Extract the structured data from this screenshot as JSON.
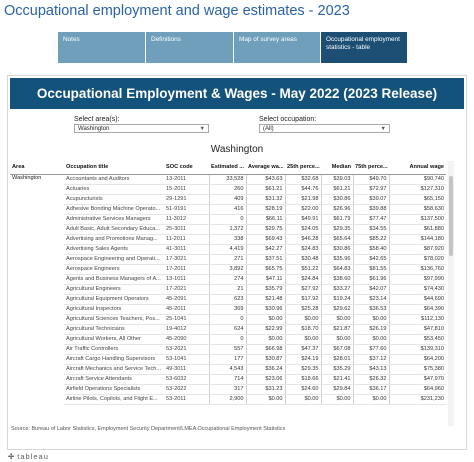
{
  "page": {
    "title": "Occupational employment and wage estimates - 2023"
  },
  "tabs": [
    {
      "label": "Notes"
    },
    {
      "label": "Definitions"
    },
    {
      "label": "Map of survey areas"
    },
    {
      "label": "Occupational employment statistics - table"
    }
  ],
  "viz": {
    "banner": "Occupational Employment & Wages - May 2022 (2023 Release)",
    "area_filter": {
      "label": "Select area(s):",
      "value": "Washington"
    },
    "occupation_filter": {
      "label": "Select occupation:",
      "value": "(All)"
    },
    "heading": "Washington",
    "columns": {
      "area": "Area",
      "occupation": "Occupation title",
      "soc": "SOC code",
      "estimated": "Estimated ...",
      "avg": "Average wa...",
      "p25": "25th perce...",
      "median": "Median",
      "p75": "75th perce...",
      "annual": "Annual wage"
    },
    "area_value": "Washington",
    "rows": [
      {
        "occupation": "Accountants and Auditors",
        "soc": "13-2011",
        "estimated": "33,528",
        "avg": "$43.63",
        "p25": "$32.68",
        "median": "$39.03",
        "p75": "$49.70",
        "annual": "$90,740"
      },
      {
        "occupation": "Actuaries",
        "soc": "15-2011",
        "estimated": "260",
        "avg": "$61.21",
        "p25": "$44.76",
        "median": "$61.21",
        "p75": "$72.97",
        "annual": "$127,310"
      },
      {
        "occupation": "Acupuncturists",
        "soc": "29-1291",
        "estimated": "409",
        "avg": "$31.32",
        "p25": "$21.98",
        "median": "$30.86",
        "p75": "$39.07",
        "annual": "$65,150"
      },
      {
        "occupation": "Adhesive Bonding Machine Operato...",
        "soc": "51-9191",
        "estimated": "416",
        "avg": "$28.19",
        "p25": "$22.00",
        "median": "$26.96",
        "p75": "$39.88",
        "annual": "$58,630"
      },
      {
        "occupation": "Administrative Services Managers",
        "soc": "11-3012",
        "estimated": "0",
        "avg": "$66.11",
        "p25": "$49.91",
        "median": "$61.79",
        "p75": "$77.47",
        "annual": "$137,500"
      },
      {
        "occupation": "Adult Basic, Adult Secondary Educa...",
        "soc": "25-3011",
        "estimated": "1,372",
        "avg": "$29.75",
        "p25": "$24.05",
        "median": "$29.35",
        "p75": "$34.55",
        "annual": "$61,880"
      },
      {
        "occupation": "Advertising and Promotions Manag...",
        "soc": "11-2011",
        "estimated": "338",
        "avg": "$69.43",
        "p25": "$46.28",
        "median": "$65.64",
        "p75": "$85.22",
        "annual": "$144,180"
      },
      {
        "occupation": "Advertising Sales Agents",
        "soc": "41-3011",
        "estimated": "4,419",
        "avg": "$42.27",
        "p25": "$24.83",
        "median": "$30.86",
        "p75": "$58.40",
        "annual": "$87,920"
      },
      {
        "occupation": "Aerospace Engineering and Operati...",
        "soc": "17-3021",
        "estimated": "271",
        "avg": "$37.51",
        "p25": "$30.48",
        "median": "$35.96",
        "p75": "$42.65",
        "annual": "$78,020"
      },
      {
        "occupation": "Aerospace Engineers",
        "soc": "17-2011",
        "estimated": "3,892",
        "avg": "$65.75",
        "p25": "$51.22",
        "median": "$64.83",
        "p75": "$81.55",
        "annual": "$136,760"
      },
      {
        "occupation": "Agents and Business Managers of A...",
        "soc": "13-1011",
        "estimated": "274",
        "avg": "$47.11",
        "p25": "$24.84",
        "median": "$38.60",
        "p75": "$61.96",
        "annual": "$97,990"
      },
      {
        "occupation": "Agricultural Engineers",
        "soc": "17-2021",
        "estimated": "21",
        "avg": "$35.79",
        "p25": "$27.92",
        "median": "$33.27",
        "p75": "$42.07",
        "annual": "$74,430"
      },
      {
        "occupation": "Agricultural Equipment Operators",
        "soc": "45-2091",
        "estimated": "623",
        "avg": "$21.48",
        "p25": "$17.92",
        "median": "$19.24",
        "p75": "$23.14",
        "annual": "$44,690"
      },
      {
        "occupation": "Agricultural Inspectors",
        "soc": "45-2011",
        "estimated": "369",
        "avg": "$30.96",
        "p25": "$25.28",
        "median": "$29.62",
        "p75": "$36.53",
        "annual": "$64,390"
      },
      {
        "occupation": "Agricultural Sciences Teachers, Pos...",
        "soc": "25-1041",
        "estimated": "0",
        "avg": "$0.00",
        "p25": "$0.00",
        "median": "$0.00",
        "p75": "$0.00",
        "annual": "$112,130"
      },
      {
        "occupation": "Agricultural Technicians",
        "soc": "19-4012",
        "estimated": "624",
        "avg": "$22.99",
        "p25": "$18.70",
        "median": "$21.87",
        "p75": "$26.19",
        "annual": "$47,810"
      },
      {
        "occupation": "Agricultural Workers, All Other",
        "soc": "45-2090",
        "estimated": "0",
        "avg": "$0.00",
        "p25": "$0.00",
        "median": "$0.00",
        "p75": "$0.00",
        "annual": "$53,450"
      },
      {
        "occupation": "Air Traffic Controllers",
        "soc": "53-2021",
        "estimated": "557",
        "avg": "$66.98",
        "p25": "$47.37",
        "median": "$67.08",
        "p75": "$77.60",
        "annual": "$139,310"
      },
      {
        "occupation": "Aircraft Cargo Handling Supervisors",
        "soc": "53-1041",
        "estimated": "177",
        "avg": "$30.87",
        "p25": "$24.19",
        "median": "$28.01",
        "p75": "$37.12",
        "annual": "$64,200"
      },
      {
        "occupation": "Aircraft Mechanics and Service Tech...",
        "soc": "49-3011",
        "estimated": "4,543",
        "avg": "$36.24",
        "p25": "$29.35",
        "median": "$35.29",
        "p75": "$43.13",
        "annual": "$75,380"
      },
      {
        "occupation": "Aircraft Service Attendants",
        "soc": "53-6032",
        "estimated": "714",
        "avg": "$23.06",
        "p25": "$18.66",
        "median": "$21.41",
        "p75": "$26.32",
        "annual": "$47,970"
      },
      {
        "occupation": "Airfield Operations Specialists",
        "soc": "53-2022",
        "estimated": "317",
        "avg": "$31.23",
        "p25": "$24.60",
        "median": "$29.84",
        "p75": "$36.17",
        "annual": "$64,960"
      },
      {
        "occupation": "Airline Pilots, Copilots, and Flight E...",
        "soc": "53-2011",
        "estimated": "2,900",
        "avg": "$0.00",
        "p25": "$0.00",
        "median": "$0.00",
        "p75": "$0.00",
        "annual": "$231,230"
      }
    ],
    "source": "Source: Bureau of Labor Statistics, Employment Security Department/LMEA Occupational Employment Statistics"
  },
  "footer": {
    "logo": "tableau"
  }
}
